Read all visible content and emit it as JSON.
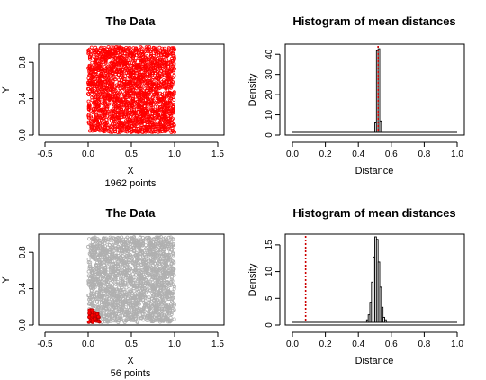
{
  "chart_data": [
    {
      "type": "scatter",
      "title": "The Data",
      "xlabel": "X",
      "ylabel": "Y",
      "subtitle": "1962 points",
      "xlim": [
        -0.5,
        1.5
      ],
      "ylim": [
        0,
        1
      ],
      "xticks": [
        "-0.5",
        "0.0",
        "0.5",
        "1.0",
        "1.5"
      ],
      "yticks": [
        "0.0",
        "0.4",
        "0.8"
      ],
      "points": {
        "count": 1962,
        "x_range": [
          0,
          1
        ],
        "y_range": [
          0,
          1
        ],
        "color": "#ff0000"
      },
      "highlight": null
    },
    {
      "type": "bar",
      "title": "Histogram of mean distances",
      "xlabel": "Distance",
      "ylabel": "Density",
      "xlim": [
        0,
        1
      ],
      "ylim": [
        0,
        45
      ],
      "xticks": [
        "0.0",
        "0.2",
        "0.4",
        "0.6",
        "0.8",
        "1.0"
      ],
      "yticks": [
        "0",
        "10",
        "20",
        "30",
        "40"
      ],
      "bin_width": 0.01,
      "bins_start": 0.5,
      "density": [
        5,
        43,
        44,
        6
      ],
      "observed_line": {
        "x": 0.52,
        "color": "#cc0000",
        "style": "dotted"
      }
    },
    {
      "type": "scatter",
      "title": "The Data",
      "xlabel": "X",
      "ylabel": "Y",
      "subtitle": "56 points",
      "xlim": [
        -0.5,
        1.5
      ],
      "ylim": [
        0,
        1
      ],
      "xticks": [
        "-0.5",
        "0.0",
        "0.5",
        "1.0",
        "1.5"
      ],
      "yticks": [
        "0.0",
        "0.4",
        "0.8"
      ],
      "points": {
        "count": 1962,
        "x_range": [
          0,
          1
        ],
        "y_range": [
          0,
          1
        ],
        "color": "#b0b0b0"
      },
      "highlight": {
        "count": 56,
        "radius": 0.15,
        "center": [
          0,
          0
        ],
        "color": "#ff0000"
      }
    },
    {
      "type": "bar",
      "title": "Histogram of mean distances",
      "xlabel": "Distance",
      "ylabel": "Density",
      "xlim": [
        0,
        1
      ],
      "ylim": [
        0,
        17
      ],
      "xticks": [
        "0.0",
        "0.2",
        "0.4",
        "0.6",
        "0.8",
        "1.0"
      ],
      "yticks": [
        "0",
        "5",
        "10",
        "15"
      ],
      "bin_width": 0.01,
      "bins_start": 0.45,
      "density": [
        0.5,
        1.5,
        4,
        8,
        13,
        17,
        16.5,
        12,
        7,
        3,
        1,
        0.5
      ],
      "observed_line": {
        "x": 0.08,
        "color": "#cc0000",
        "style": "dotted"
      }
    }
  ]
}
